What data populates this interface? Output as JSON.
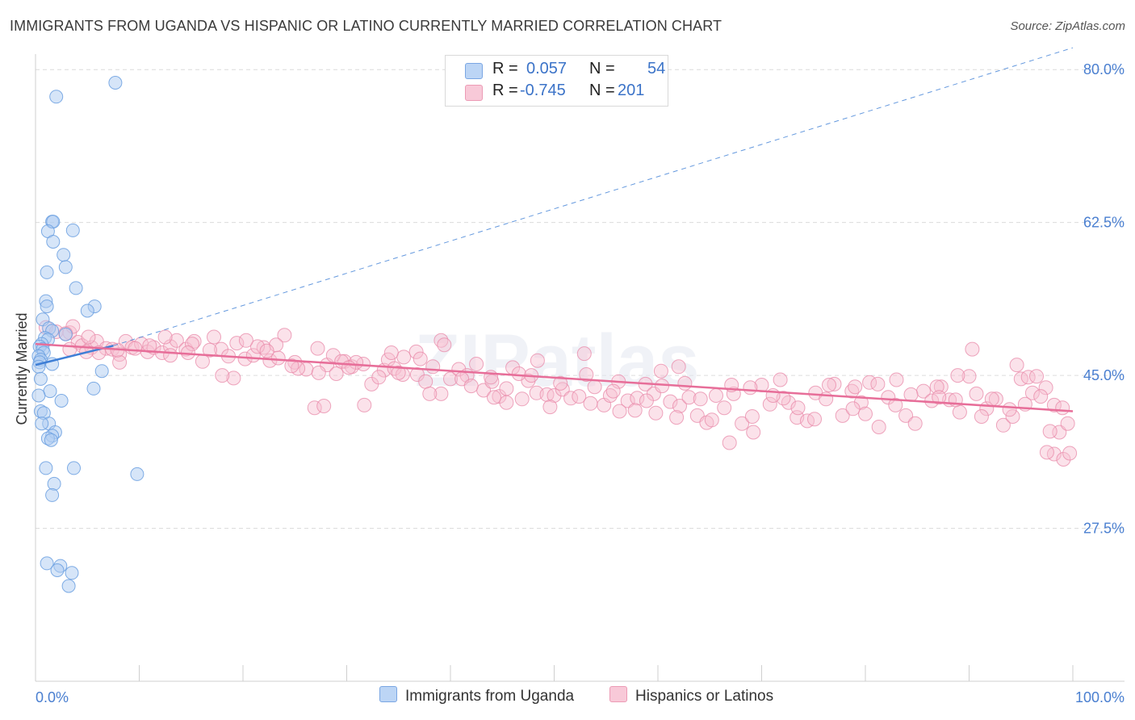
{
  "title": "IMMIGRANTS FROM UGANDA VS HISPANIC OR LATINO CURRENTLY MARRIED CORRELATION CHART",
  "source": "Source: ZipAtlas.com",
  "watermark": "ZIPatlas",
  "colors": {
    "blue": "#6a9fe0",
    "blue_fill": "#aecbf2",
    "blue_line": "#3f7fd6",
    "pink": "#e888a8",
    "pink_fill": "#f6bfd0",
    "pink_line": "#e76e99",
    "axis_label": "#4a7fd0",
    "grid": "#dcdcdc"
  },
  "legend": {
    "r_label": "R =",
    "n_label": "N =",
    "series1": {
      "r": "0.057",
      "n": "54"
    },
    "series2": {
      "r": "-0.745",
      "n": "201"
    }
  },
  "chart_data": {
    "type": "scatter",
    "title": "IMMIGRANTS FROM UGANDA VS HISPANIC OR LATINO CURRENTLY MARRIED CORRELATION CHART",
    "xlabel": "",
    "ylabel": "Currently Married",
    "xlim": [
      0,
      100
    ],
    "ylim": [
      10,
      81.5
    ],
    "x_ticks": [
      0,
      10,
      20,
      30,
      40,
      50,
      60,
      70,
      80,
      90,
      100
    ],
    "x_tick_labels": {
      "left": "0.0%",
      "right": "100.0%"
    },
    "y_ticks": [
      27.5,
      45.0,
      62.5,
      80.0
    ],
    "y_tick_labels": [
      "27.5%",
      "45.0%",
      "62.5%",
      "80.0%"
    ],
    "series": [
      {
        "name": "Immigrants from Uganda",
        "trend": {
          "x0": 0,
          "y0": 46.2,
          "x1": 7.5,
          "y1": 48.4,
          "dashed_to": {
            "x": 100,
            "y": 82.5
          }
        },
        "points": [
          [
            7.7,
            78.5
          ],
          [
            2.0,
            76.9
          ],
          [
            1.6,
            62.6
          ],
          [
            1.7,
            62.6
          ],
          [
            3.6,
            61.6
          ],
          [
            1.2,
            61.5
          ],
          [
            1.7,
            60.3
          ],
          [
            2.7,
            58.8
          ],
          [
            2.9,
            57.4
          ],
          [
            1.1,
            56.8
          ],
          [
            3.9,
            55.0
          ],
          [
            1.0,
            53.5
          ],
          [
            1.1,
            52.9
          ],
          [
            5.7,
            52.9
          ],
          [
            5.0,
            52.4
          ],
          [
            0.7,
            51.4
          ],
          [
            1.3,
            50.4
          ],
          [
            1.6,
            50.1
          ],
          [
            2.9,
            49.7
          ],
          [
            0.9,
            49.3
          ],
          [
            1.2,
            49.1
          ],
          [
            0.6,
            48.6
          ],
          [
            0.4,
            48.3
          ],
          [
            0.7,
            48.0
          ],
          [
            0.8,
            47.6
          ],
          [
            0.3,
            47.2
          ],
          [
            0.5,
            46.8
          ],
          [
            0.4,
            46.5
          ],
          [
            1.6,
            46.3
          ],
          [
            0.3,
            46.0
          ],
          [
            6.4,
            45.5
          ],
          [
            0.5,
            44.6
          ],
          [
            5.6,
            43.5
          ],
          [
            1.4,
            43.2
          ],
          [
            2.5,
            42.1
          ],
          [
            0.5,
            40.9
          ],
          [
            0.8,
            40.7
          ],
          [
            1.3,
            39.5
          ],
          [
            0.6,
            39.5
          ],
          [
            1.9,
            38.5
          ],
          [
            1.6,
            38.1
          ],
          [
            1.2,
            37.8
          ],
          [
            1.5,
            37.6
          ],
          [
            1.0,
            34.4
          ],
          [
            3.7,
            34.4
          ],
          [
            9.8,
            33.7
          ],
          [
            1.8,
            32.6
          ],
          [
            1.6,
            31.3
          ],
          [
            1.1,
            23.5
          ],
          [
            2.4,
            23.2
          ],
          [
            2.1,
            22.7
          ],
          [
            3.5,
            22.4
          ],
          [
            3.2,
            20.9
          ],
          [
            0.3,
            42.7
          ]
        ]
      },
      {
        "name": "Hispanics or Latinos",
        "trend": {
          "x0": 0,
          "y0": 48.6,
          "x1": 100,
          "y1": 40.9
        },
        "points": [
          [
            1.0,
            50.5
          ],
          [
            2.0,
            50.0
          ],
          [
            3.3,
            49.9
          ],
          [
            3.6,
            50.6
          ],
          [
            4.1,
            48.8
          ],
          [
            4.5,
            48.4
          ],
          [
            5.4,
            48.2
          ],
          [
            5.9,
            48.9
          ],
          [
            6.8,
            48.1
          ],
          [
            7.4,
            48.0
          ],
          [
            8.1,
            47.4
          ],
          [
            8.7,
            48.9
          ],
          [
            9.3,
            48.2
          ],
          [
            10.2,
            48.6
          ],
          [
            10.8,
            47.7
          ],
          [
            11.4,
            48.2
          ],
          [
            12.2,
            47.6
          ],
          [
            13.0,
            48.3
          ],
          [
            13.6,
            49.0
          ],
          [
            14.5,
            48.0
          ],
          [
            15.3,
            48.9
          ],
          [
            16.1,
            46.6
          ],
          [
            17.2,
            49.4
          ],
          [
            17.9,
            48.0
          ],
          [
            18.6,
            47.2
          ],
          [
            19.4,
            48.7
          ],
          [
            20.2,
            46.9
          ],
          [
            21.0,
            47.3
          ],
          [
            22.0,
            48.2
          ],
          [
            22.6,
            46.7
          ],
          [
            23.4,
            47.0
          ],
          [
            24.0,
            49.6
          ],
          [
            25.0,
            46.5
          ],
          [
            26.1,
            45.7
          ],
          [
            27.2,
            48.1
          ],
          [
            28.1,
            46.2
          ],
          [
            29.0,
            45.2
          ],
          [
            29.8,
            46.6
          ],
          [
            30.5,
            46.0
          ],
          [
            31.6,
            46.3
          ],
          [
            32.4,
            44.0
          ],
          [
            33.6,
            45.6
          ],
          [
            34.0,
            46.8
          ],
          [
            34.6,
            45.8
          ],
          [
            35.5,
            47.1
          ],
          [
            36.8,
            45.1
          ],
          [
            37.6,
            44.3
          ],
          [
            38.3,
            46.0
          ],
          [
            39.1,
            42.9
          ],
          [
            40.0,
            44.6
          ],
          [
            40.8,
            45.7
          ],
          [
            41.6,
            45.0
          ],
          [
            42.5,
            46.3
          ],
          [
            43.2,
            43.3
          ],
          [
            44.0,
            44.3
          ],
          [
            44.7,
            42.6
          ],
          [
            45.4,
            43.5
          ],
          [
            46.0,
            45.9
          ],
          [
            46.9,
            42.3
          ],
          [
            47.5,
            44.4
          ],
          [
            48.3,
            43.0
          ],
          [
            49.3,
            42.8
          ],
          [
            50.0,
            42.7
          ],
          [
            50.8,
            43.4
          ],
          [
            51.6,
            42.4
          ],
          [
            52.4,
            42.6
          ],
          [
            53.1,
            45.1
          ],
          [
            53.9,
            43.7
          ],
          [
            54.8,
            41.6
          ],
          [
            55.4,
            42.7
          ],
          [
            56.2,
            44.3
          ],
          [
            57.1,
            42.1
          ],
          [
            58.0,
            42.4
          ],
          [
            58.8,
            44.0
          ],
          [
            59.6,
            42.9
          ],
          [
            60.4,
            43.8
          ],
          [
            61.2,
            42.0
          ],
          [
            62.1,
            41.5
          ],
          [
            63.0,
            42.5
          ],
          [
            63.8,
            40.4
          ],
          [
            64.7,
            39.6
          ],
          [
            65.6,
            42.7
          ],
          [
            66.4,
            41.3
          ],
          [
            67.3,
            42.9
          ],
          [
            68.1,
            39.5
          ],
          [
            69.1,
            40.3
          ],
          [
            70.0,
            43.9
          ],
          [
            70.8,
            41.7
          ],
          [
            71.8,
            44.5
          ],
          [
            72.6,
            41.9
          ],
          [
            73.4,
            40.2
          ],
          [
            74.4,
            39.8
          ],
          [
            75.2,
            43.0
          ],
          [
            76.2,
            42.3
          ],
          [
            77.0,
            44.0
          ],
          [
            77.8,
            40.4
          ],
          [
            78.7,
            43.2
          ],
          [
            79.6,
            41.9
          ],
          [
            80.4,
            44.2
          ],
          [
            81.3,
            39.1
          ],
          [
            82.2,
            42.5
          ],
          [
            83.0,
            44.5
          ],
          [
            83.9,
            40.4
          ],
          [
            84.8,
            39.5
          ],
          [
            85.6,
            43.2
          ],
          [
            86.4,
            42.1
          ],
          [
            87.3,
            43.7
          ],
          [
            88.1,
            42.2
          ],
          [
            89.1,
            40.8
          ],
          [
            90.0,
            44.9
          ],
          [
            90.7,
            42.9
          ],
          [
            91.7,
            41.2
          ],
          [
            92.6,
            42.3
          ],
          [
            93.3,
            39.3
          ],
          [
            94.2,
            40.3
          ],
          [
            95.0,
            44.6
          ],
          [
            95.7,
            44.8
          ],
          [
            96.5,
            44.9
          ],
          [
            97.4,
            43.6
          ],
          [
            98.2,
            41.6
          ],
          [
            98.7,
            38.5
          ],
          [
            99.5,
            39.5
          ],
          [
            98.2,
            36.0
          ],
          [
            99.1,
            35.4
          ],
          [
            97.5,
            36.2
          ],
          [
            99.7,
            36.1
          ],
          [
            26.9,
            41.3
          ],
          [
            27.8,
            41.5
          ],
          [
            34.3,
            47.6
          ],
          [
            39.1,
            49.0
          ],
          [
            48.4,
            46.7
          ],
          [
            52.9,
            47.5
          ],
          [
            60.3,
            45.5
          ],
          [
            67.1,
            43.9
          ],
          [
            73.5,
            41.3
          ],
          [
            81.2,
            44.0
          ],
          [
            88.9,
            45.0
          ],
          [
            90.3,
            48.0
          ],
          [
            94.6,
            46.2
          ],
          [
            64.1,
            42.3
          ],
          [
            56.3,
            40.9
          ],
          [
            45.4,
            41.9
          ],
          [
            35.4,
            45.1
          ],
          [
            27.3,
            45.3
          ],
          [
            23.2,
            48.5
          ],
          [
            13.0,
            47.3
          ],
          [
            8.1,
            46.5
          ],
          [
            2.9,
            49.8
          ],
          [
            3.3,
            48.0
          ],
          [
            5.1,
            49.4
          ],
          [
            6.1,
            47.6
          ],
          [
            15.1,
            48.6
          ],
          [
            19.1,
            44.7
          ],
          [
            21.4,
            48.3
          ],
          [
            25.3,
            45.8
          ],
          [
            30.9,
            46.5
          ],
          [
            36.7,
            47.7
          ],
          [
            41.1,
            44.6
          ],
          [
            46.6,
            45.2
          ],
          [
            49.6,
            41.4
          ],
          [
            55.7,
            43.2
          ],
          [
            59.8,
            40.7
          ],
          [
            62.6,
            44.1
          ],
          [
            68.9,
            43.6
          ],
          [
            72.1,
            42.4
          ],
          [
            76.5,
            43.9
          ],
          [
            80.0,
            40.6
          ],
          [
            84.4,
            42.8
          ],
          [
            86.9,
            43.7
          ],
          [
            92.2,
            42.3
          ],
          [
            96.1,
            43.0
          ],
          [
            99.0,
            41.3
          ],
          [
            66.9,
            37.3
          ],
          [
            65.2,
            39.9
          ],
          [
            69.2,
            38.5
          ],
          [
            75.1,
            40.0
          ],
          [
            78.8,
            41.2
          ],
          [
            82.9,
            41.6
          ],
          [
            87.1,
            42.5
          ],
          [
            91.2,
            40.3
          ],
          [
            93.9,
            41.1
          ],
          [
            96.9,
            42.6
          ],
          [
            57.8,
            41.0
          ],
          [
            61.8,
            40.2
          ],
          [
            53.5,
            41.8
          ],
          [
            50.6,
            44.1
          ],
          [
            44.2,
            42.5
          ],
          [
            42.0,
            43.8
          ],
          [
            38.0,
            42.9
          ],
          [
            33.1,
            44.8
          ],
          [
            31.7,
            41.6
          ],
          [
            28.7,
            47.3
          ],
          [
            22.3,
            47.8
          ],
          [
            18.0,
            45.0
          ],
          [
            12.5,
            49.4
          ],
          [
            9.6,
            48.1
          ],
          [
            16.8,
            47.9
          ],
          [
            4.9,
            47.7
          ],
          [
            7.9,
            47.9
          ],
          [
            11.0,
            48.4
          ],
          [
            14.7,
            47.6
          ],
          [
            20.3,
            49.0
          ],
          [
            24.7,
            46.1
          ],
          [
            29.5,
            46.6
          ],
          [
            37.1,
            46.9
          ],
          [
            43.9,
            44.8
          ],
          [
            47.8,
            45.0
          ],
          [
            62.0,
            46.0
          ],
          [
            71.1,
            42.7
          ],
          [
            79.0,
            43.7
          ],
          [
            88.7,
            42.2
          ],
          [
            95.4,
            41.7
          ],
          [
            97.8,
            38.6
          ],
          [
            39.4,
            48.5
          ],
          [
            30.2,
            45.9
          ],
          [
            58.9,
            42.1
          ],
          [
            35.0,
            45.3
          ]
        ]
      }
    ]
  },
  "axis": {
    "y_title": "Currently Married",
    "y_ticks": [
      "27.5%",
      "45.0%",
      "62.5%",
      "80.0%"
    ],
    "x_left": "0.0%",
    "x_right": "100.0%"
  },
  "bottom_legend": {
    "series1": "Immigrants from Uganda",
    "series2": "Hispanics or Latinos"
  }
}
